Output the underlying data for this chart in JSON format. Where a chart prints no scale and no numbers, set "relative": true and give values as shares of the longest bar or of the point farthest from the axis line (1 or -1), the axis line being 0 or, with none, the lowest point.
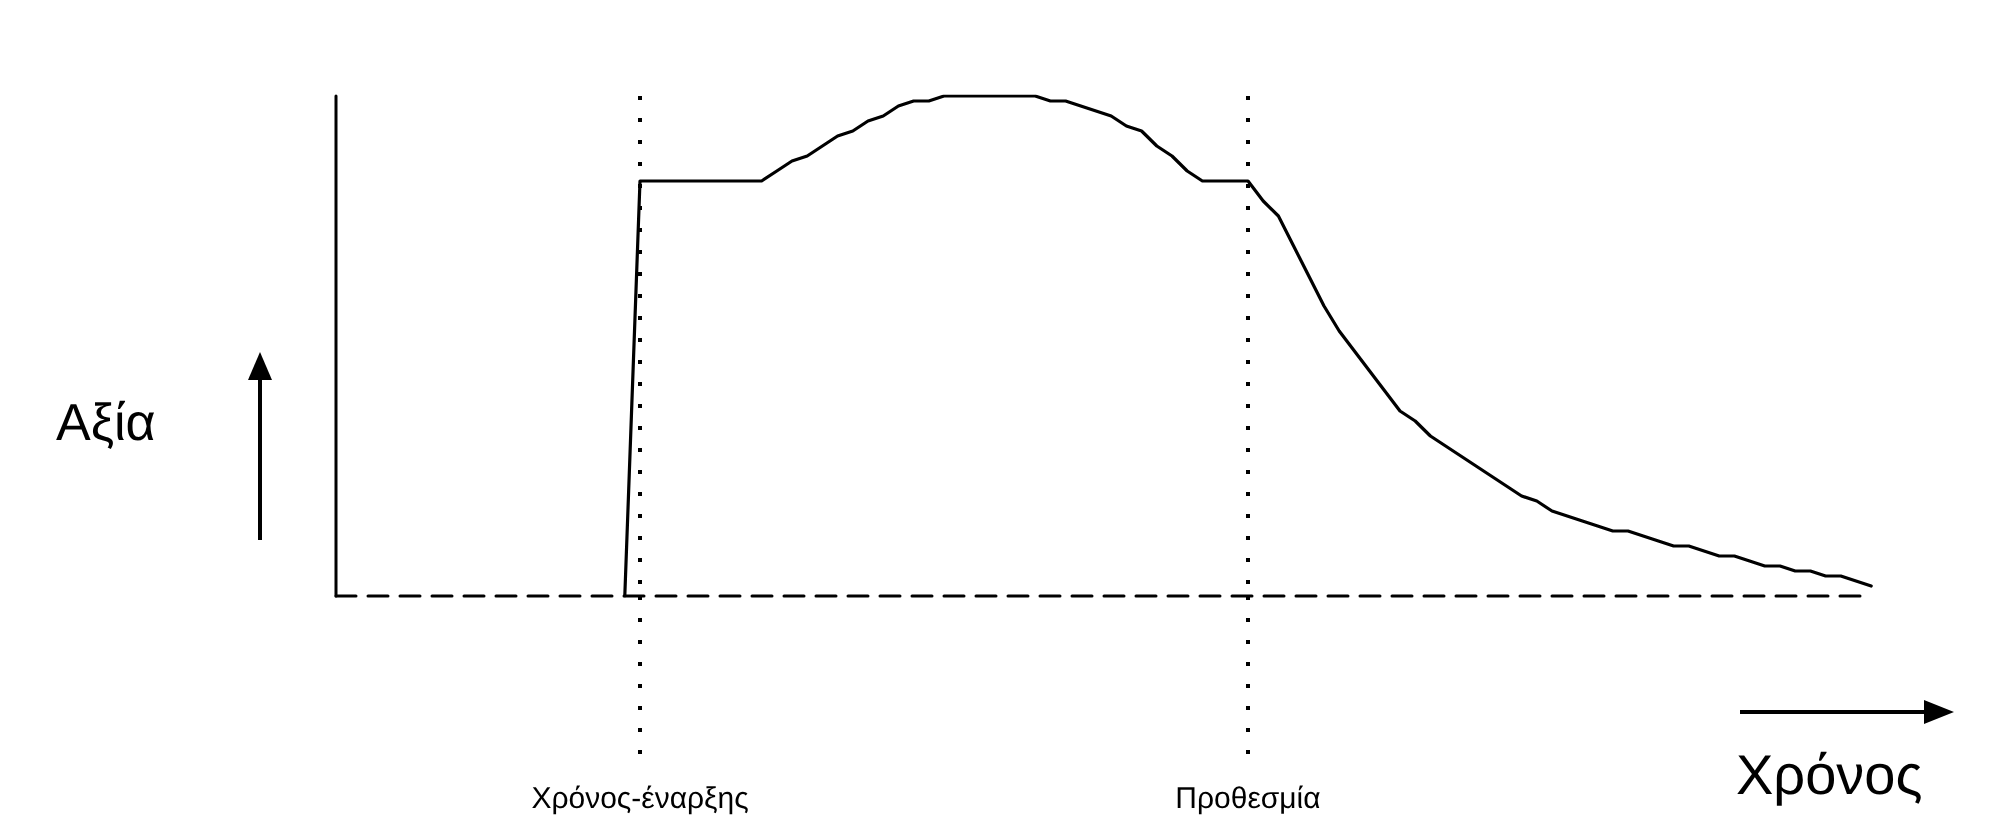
{
  "chart_data": {
    "type": "line",
    "relative": true,
    "xlabel": "Χρόνος",
    "ylabel": "Αξία",
    "grid": "x",
    "marker": "none",
    "line_style": "solid",
    "categories": [
      null,
      null,
      null,
      null,
      null,
      null,
      null,
      null,
      null,
      null,
      null,
      null,
      null,
      null,
      null,
      null,
      null,
      null,
      null,
      null,
      "Χρόνος-έναρξης",
      null,
      null,
      null,
      null,
      null,
      null,
      null,
      null,
      null,
      null,
      null,
      null,
      null,
      null,
      null,
      null,
      null,
      null,
      null,
      null,
      null,
      null,
      null,
      null,
      null,
      null,
      null,
      null,
      null,
      null,
      null,
      null,
      null,
      null,
      null,
      null,
      null,
      null,
      null,
      "Προθεσμία",
      null,
      null,
      null,
      null,
      null,
      null,
      null,
      null,
      null,
      null,
      null,
      null,
      null,
      null,
      null,
      null,
      null,
      null,
      null,
      null,
      null,
      null,
      null,
      null,
      null,
      null,
      null,
      null,
      null,
      null,
      null,
      null,
      null,
      null,
      null,
      null,
      null,
      null,
      null,
      null,
      null
    ],
    "series": [
      {
        "color": "#000000",
        "values": [
          null,
          null,
          null,
          null,
          null,
          null,
          null,
          null,
          null,
          null,
          null,
          null,
          null,
          null,
          null,
          null,
          null,
          null,
          null,
          0,
          0.83,
          0.83,
          0.83,
          0.83,
          0.83,
          0.83,
          0.83,
          0.83,
          0.83,
          0.85,
          0.87,
          0.88,
          0.9,
          0.92,
          0.93,
          0.95,
          0.96,
          0.98,
          0.99,
          0.99,
          1,
          1,
          1,
          1,
          1,
          1,
          1,
          0.99,
          0.99,
          0.98,
          0.97,
          0.96,
          0.94,
          0.93,
          0.9,
          0.88,
          0.85,
          0.83,
          0.83,
          0.83,
          0.83,
          0.79,
          0.76,
          0.7,
          0.64,
          0.58,
          0.53,
          0.49,
          0.45,
          0.41,
          0.37,
          0.35,
          0.32,
          0.3,
          0.28,
          0.26,
          0.24,
          0.22,
          0.2,
          0.19,
          0.17,
          0.16,
          0.15,
          0.14,
          0.13,
          0.13,
          0.12,
          0.11,
          0.1,
          0.1,
          0.09,
          0.08,
          0.08,
          0.07,
          0.06,
          0.06,
          0.05,
          0.05,
          0.04,
          0.04,
          0.03,
          0.02
        ]
      }
    ]
  }
}
